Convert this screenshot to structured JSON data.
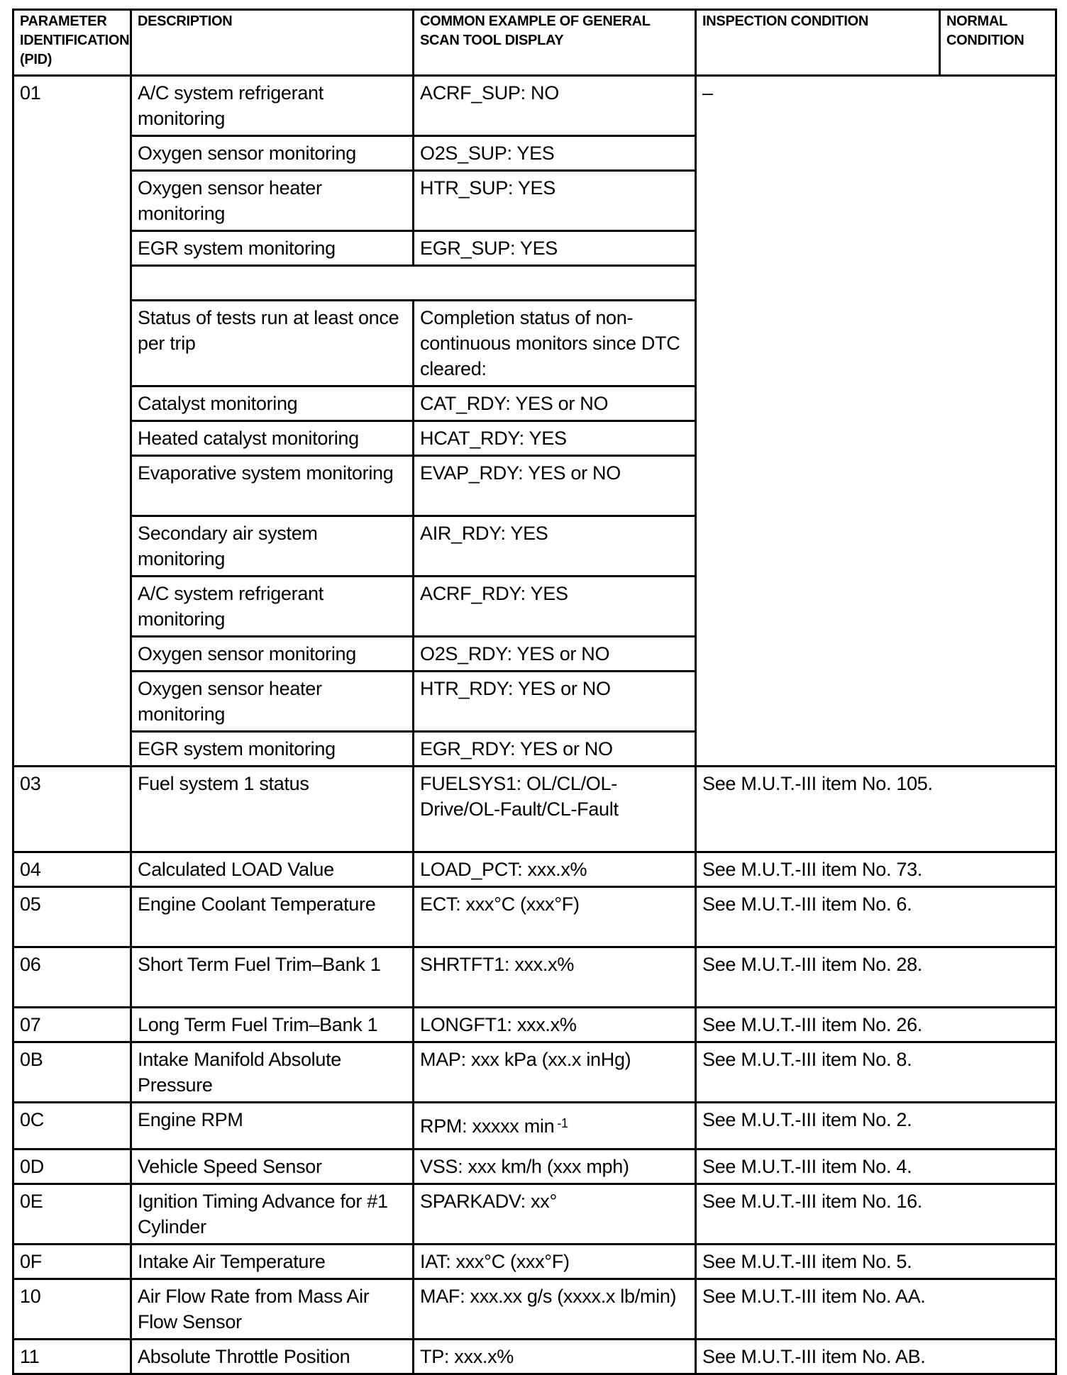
{
  "header": {
    "pid": "PARAMETER IDENTIFICATION (PID)",
    "description": "DESCRIPTION",
    "example": "COMMON EXAMPLE OF GENERAL SCAN TOOL DISPLAY",
    "inspection": "INSPECTION CONDITION",
    "normal": "NORMAL CONDITION"
  },
  "pid01": {
    "pid": "01",
    "inspection": "–",
    "rows": [
      {
        "description": "A/C system refrigerant monitoring",
        "example": "ACRF_SUP: NO",
        "lines": 2
      },
      {
        "description": "Oxygen sensor monitoring",
        "example": "O2S_SUP: YES",
        "lines": 1
      },
      {
        "description": "Oxygen sensor heater monitoring",
        "example": "HTR_SUP: YES",
        "lines": 2
      },
      {
        "description": "EGR system monitoring",
        "example": "EGR_SUP: YES",
        "lines": 1
      },
      {
        "description": "",
        "example": "",
        "lines": 1,
        "merged": true
      },
      {
        "description": "Status of tests run at least once per trip",
        "example": "Completion status of non-continuous monitors since DTC cleared:",
        "lines": 3
      },
      {
        "description": "Catalyst monitoring",
        "example": "CAT_RDY: YES or NO",
        "lines": 1
      },
      {
        "description": "Heated catalyst monitoring",
        "example": "HCAT_RDY: YES",
        "lines": 1
      },
      {
        "description": "Evaporative system monitoring",
        "example": "EVAP_RDY: YES or NO",
        "lines": 2
      },
      {
        "description": "Secondary air system monitoring",
        "example": "AIR_RDY: YES",
        "lines": 2
      },
      {
        "description": "A/C system refrigerant monitoring",
        "example": "ACRF_RDY: YES",
        "lines": 2
      },
      {
        "description": "Oxygen sensor monitoring",
        "example": "O2S_RDY: YES or NO",
        "lines": 1
      },
      {
        "description": "Oxygen sensor heater monitoring",
        "example": "HTR_RDY: YES or NO",
        "lines": 2
      },
      {
        "description": "EGR system monitoring",
        "example": "EGR_RDY: YES or NO",
        "lines": 1
      }
    ]
  },
  "rows": [
    {
      "pid": "03",
      "description": "Fuel system 1 status",
      "example": "FUELSYS1: OL/CL/OL-Drive/OL-Fault/CL-Fault",
      "inspection": "See M.U.T.-III item No. 105.",
      "lines": 3
    },
    {
      "pid": "04",
      "description": "Calculated LOAD Value",
      "example": "LOAD_PCT: xxx.x%",
      "inspection": "See M.U.T.-III item No. 73.",
      "lines": 1
    },
    {
      "pid": "05",
      "description": "Engine Coolant Temperature",
      "example": "ECT: xxx°C (xxx°F)",
      "inspection": "See M.U.T.-III item No. 6.",
      "lines": 2
    },
    {
      "pid": "06",
      "description": "Short Term Fuel Trim–Bank 1",
      "example": "SHRTFT1: xxx.x%",
      "inspection": "See M.U.T.-III item No. 28.",
      "lines": 2
    },
    {
      "pid": "07",
      "description": "Long Term Fuel Trim–Bank 1",
      "example": "LONGFT1: xxx.x%",
      "inspection": "See M.U.T.-III item No. 26.",
      "lines": 1
    },
    {
      "pid": "0B",
      "description": "Intake Manifold Absolute Pressure",
      "example": "MAP: xxx kPa (xx.x inHg)",
      "inspection": "See M.U.T.-III item No. 8.",
      "lines": 2
    },
    {
      "pid": "0C",
      "description": "Engine RPM",
      "example": "RPM: xxxxx min",
      "example_sup": "-1",
      "inspection": "See M.U.T.-III item No. 2.",
      "lines": 1,
      "tall": true
    },
    {
      "pid": "0D",
      "description": "Vehicle Speed Sensor",
      "example": "VSS: xxx km/h (xxx mph)",
      "inspection": "See M.U.T.-III item No. 4.",
      "lines": 1
    },
    {
      "pid": "0E",
      "description": "Ignition Timing Advance for #1 Cylinder",
      "example": "SPARKADV: xx°",
      "inspection": "See M.U.T.-III item No. 16.",
      "lines": 2
    },
    {
      "pid": "0F",
      "description": "Intake Air Temperature",
      "example": "IAT: xxx°C (xxx°F)",
      "inspection": "See M.U.T.-III item No. 5.",
      "lines": 1
    },
    {
      "pid": "10",
      "description": "Air Flow Rate from Mass Air Flow Sensor",
      "example": "MAF: xxx.xx g/s (xxxx.x lb/min)",
      "inspection": "See M.U.T.-III item No. AA.",
      "lines": 2
    },
    {
      "pid": "11",
      "description": "Absolute Throttle Position",
      "example": "TP: xxx.x%",
      "inspection": "See M.U.T.-III item No. AB.",
      "lines": 1
    }
  ]
}
